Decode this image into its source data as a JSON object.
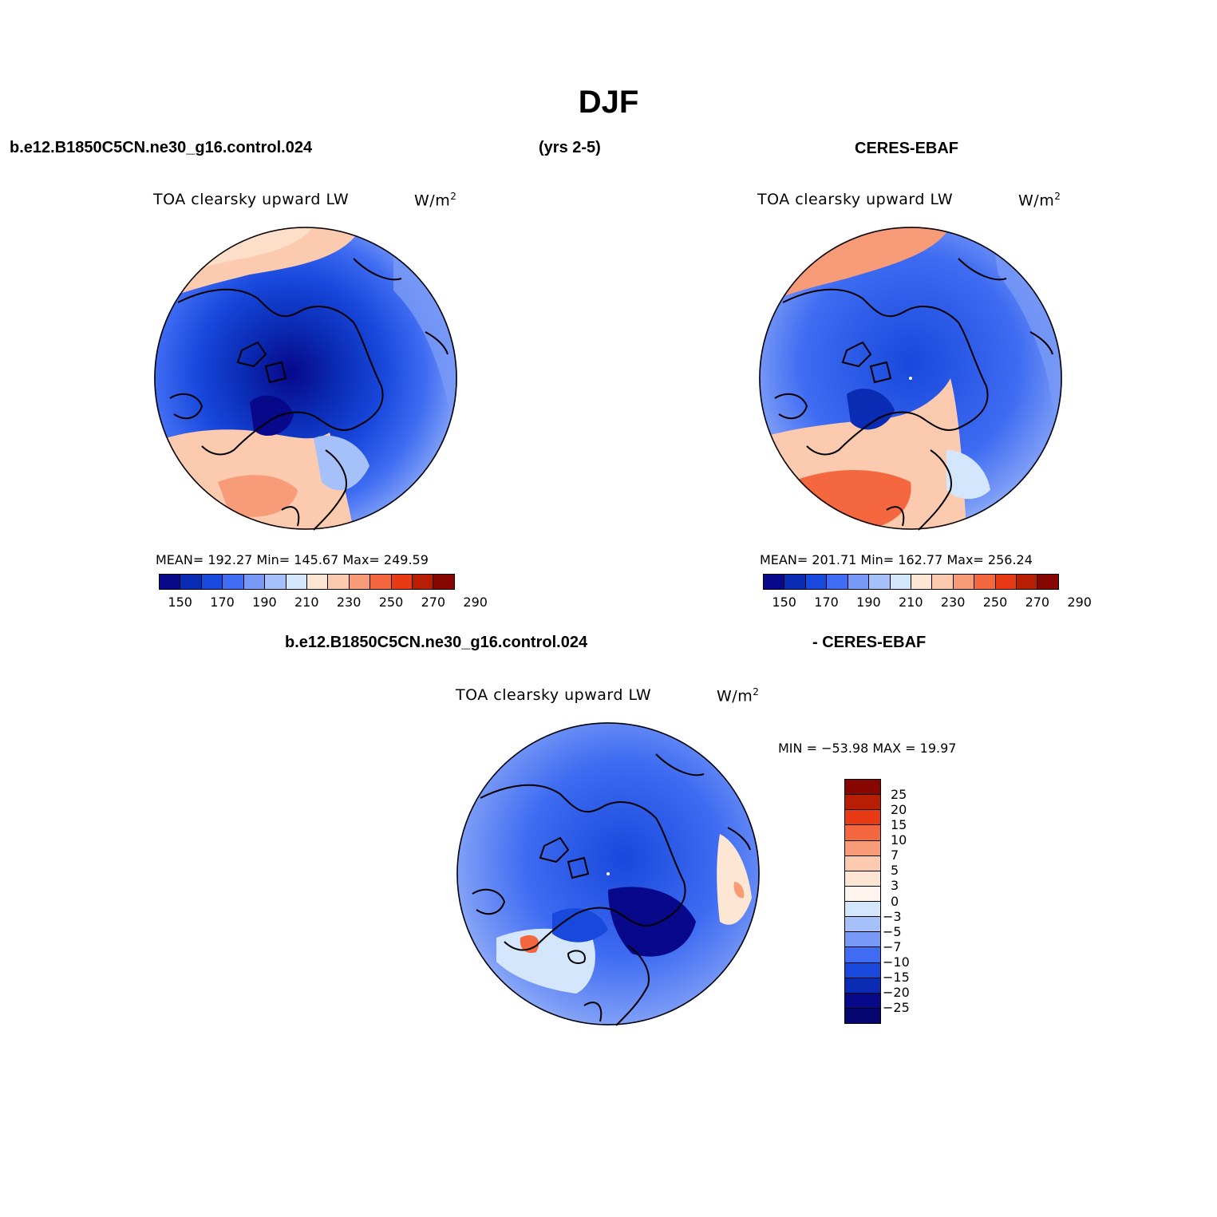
{
  "figure": {
    "season": "DJF",
    "case_name": "b.e12.B1850C5CN.ne30_g16.control.024",
    "years": "(yrs 2-5)",
    "obs_name": "CERES-EBAF",
    "diff_case_name": "b.e12.B1850C5CN.ne30_g16.control.024",
    "diff_obs_name": "- CERES-EBAF"
  },
  "panels": {
    "model": {
      "variable": "TOA clearsky upward LW",
      "units_base": "W/m",
      "units_exp": "2",
      "stats": "MEAN= 192.27   Min= 145.67   Max= 249.59"
    },
    "obs": {
      "variable": "TOA clearsky upward LW",
      "units_base": "W/m",
      "units_exp": "2",
      "stats": "MEAN= 201.71   Min= 162.77   Max= 256.24"
    },
    "diff": {
      "variable": "TOA clearsky upward LW",
      "units_base": "W/m",
      "units_exp": "2",
      "stats": "MIN = −53.98 MAX =   19.97"
    }
  },
  "colorbar_main": {
    "tick_labels": [
      "150",
      "170",
      "190",
      "210",
      "230",
      "250",
      "270",
      "290"
    ],
    "colors": [
      "#08088a",
      "#0a2bb4",
      "#1848dc",
      "#3f6cf2",
      "#7899f6",
      "#a6c1fa",
      "#d4e6fc",
      "#fde7d4",
      "#fccaae",
      "#f79b78",
      "#f5673e",
      "#e83a14",
      "#b81e04",
      "#870600"
    ]
  },
  "colorbar_diff": {
    "tick_labels": [
      "25",
      "20",
      "15",
      "10",
      "7",
      "5",
      "3",
      "0",
      "−3",
      "−5",
      "−7",
      "−10",
      "−15",
      "−20",
      "−25"
    ],
    "colors": [
      "#870600",
      "#b81e04",
      "#e83a14",
      "#f5673e",
      "#f79b78",
      "#fccaae",
      "#fde7d4",
      "#fef6ee",
      "#d4e6fc",
      "#a6c1fa",
      "#7899f6",
      "#3f6cf2",
      "#1848dc",
      "#0a2bb4",
      "#08088a",
      "#060670"
    ]
  },
  "chart_data": [
    {
      "type": "heatmap",
      "title": "TOA clearsky upward LW",
      "subtitle": "b.e12.B1850C5CN.ne30_g16.control.024 (yrs 2-5)",
      "units": "W/m2",
      "projection": "north polar stereographic",
      "mean": 192.27,
      "min": 145.67,
      "max": 249.59,
      "levels": [
        150,
        160,
        170,
        180,
        190,
        200,
        210,
        220,
        230,
        240,
        250,
        260,
        270,
        280,
        290
      ]
    },
    {
      "type": "heatmap",
      "title": "TOA clearsky upward LW",
      "subtitle": "CERES-EBAF",
      "units": "W/m2",
      "projection": "north polar stereographic",
      "mean": 201.71,
      "min": 162.77,
      "max": 256.24,
      "levels": [
        150,
        160,
        170,
        180,
        190,
        200,
        210,
        220,
        230,
        240,
        250,
        260,
        270,
        280,
        290
      ]
    },
    {
      "type": "heatmap",
      "title": "TOA clearsky upward LW",
      "subtitle": "b.e12.B1850C5CN.ne30_g16.control.024 - CERES-EBAF",
      "units": "W/m2",
      "projection": "north polar stereographic",
      "min": -53.98,
      "max": 19.97,
      "levels": [
        -25,
        -20,
        -15,
        -10,
        -7,
        -5,
        -3,
        0,
        3,
        5,
        7,
        10,
        15,
        20,
        25
      ]
    }
  ]
}
